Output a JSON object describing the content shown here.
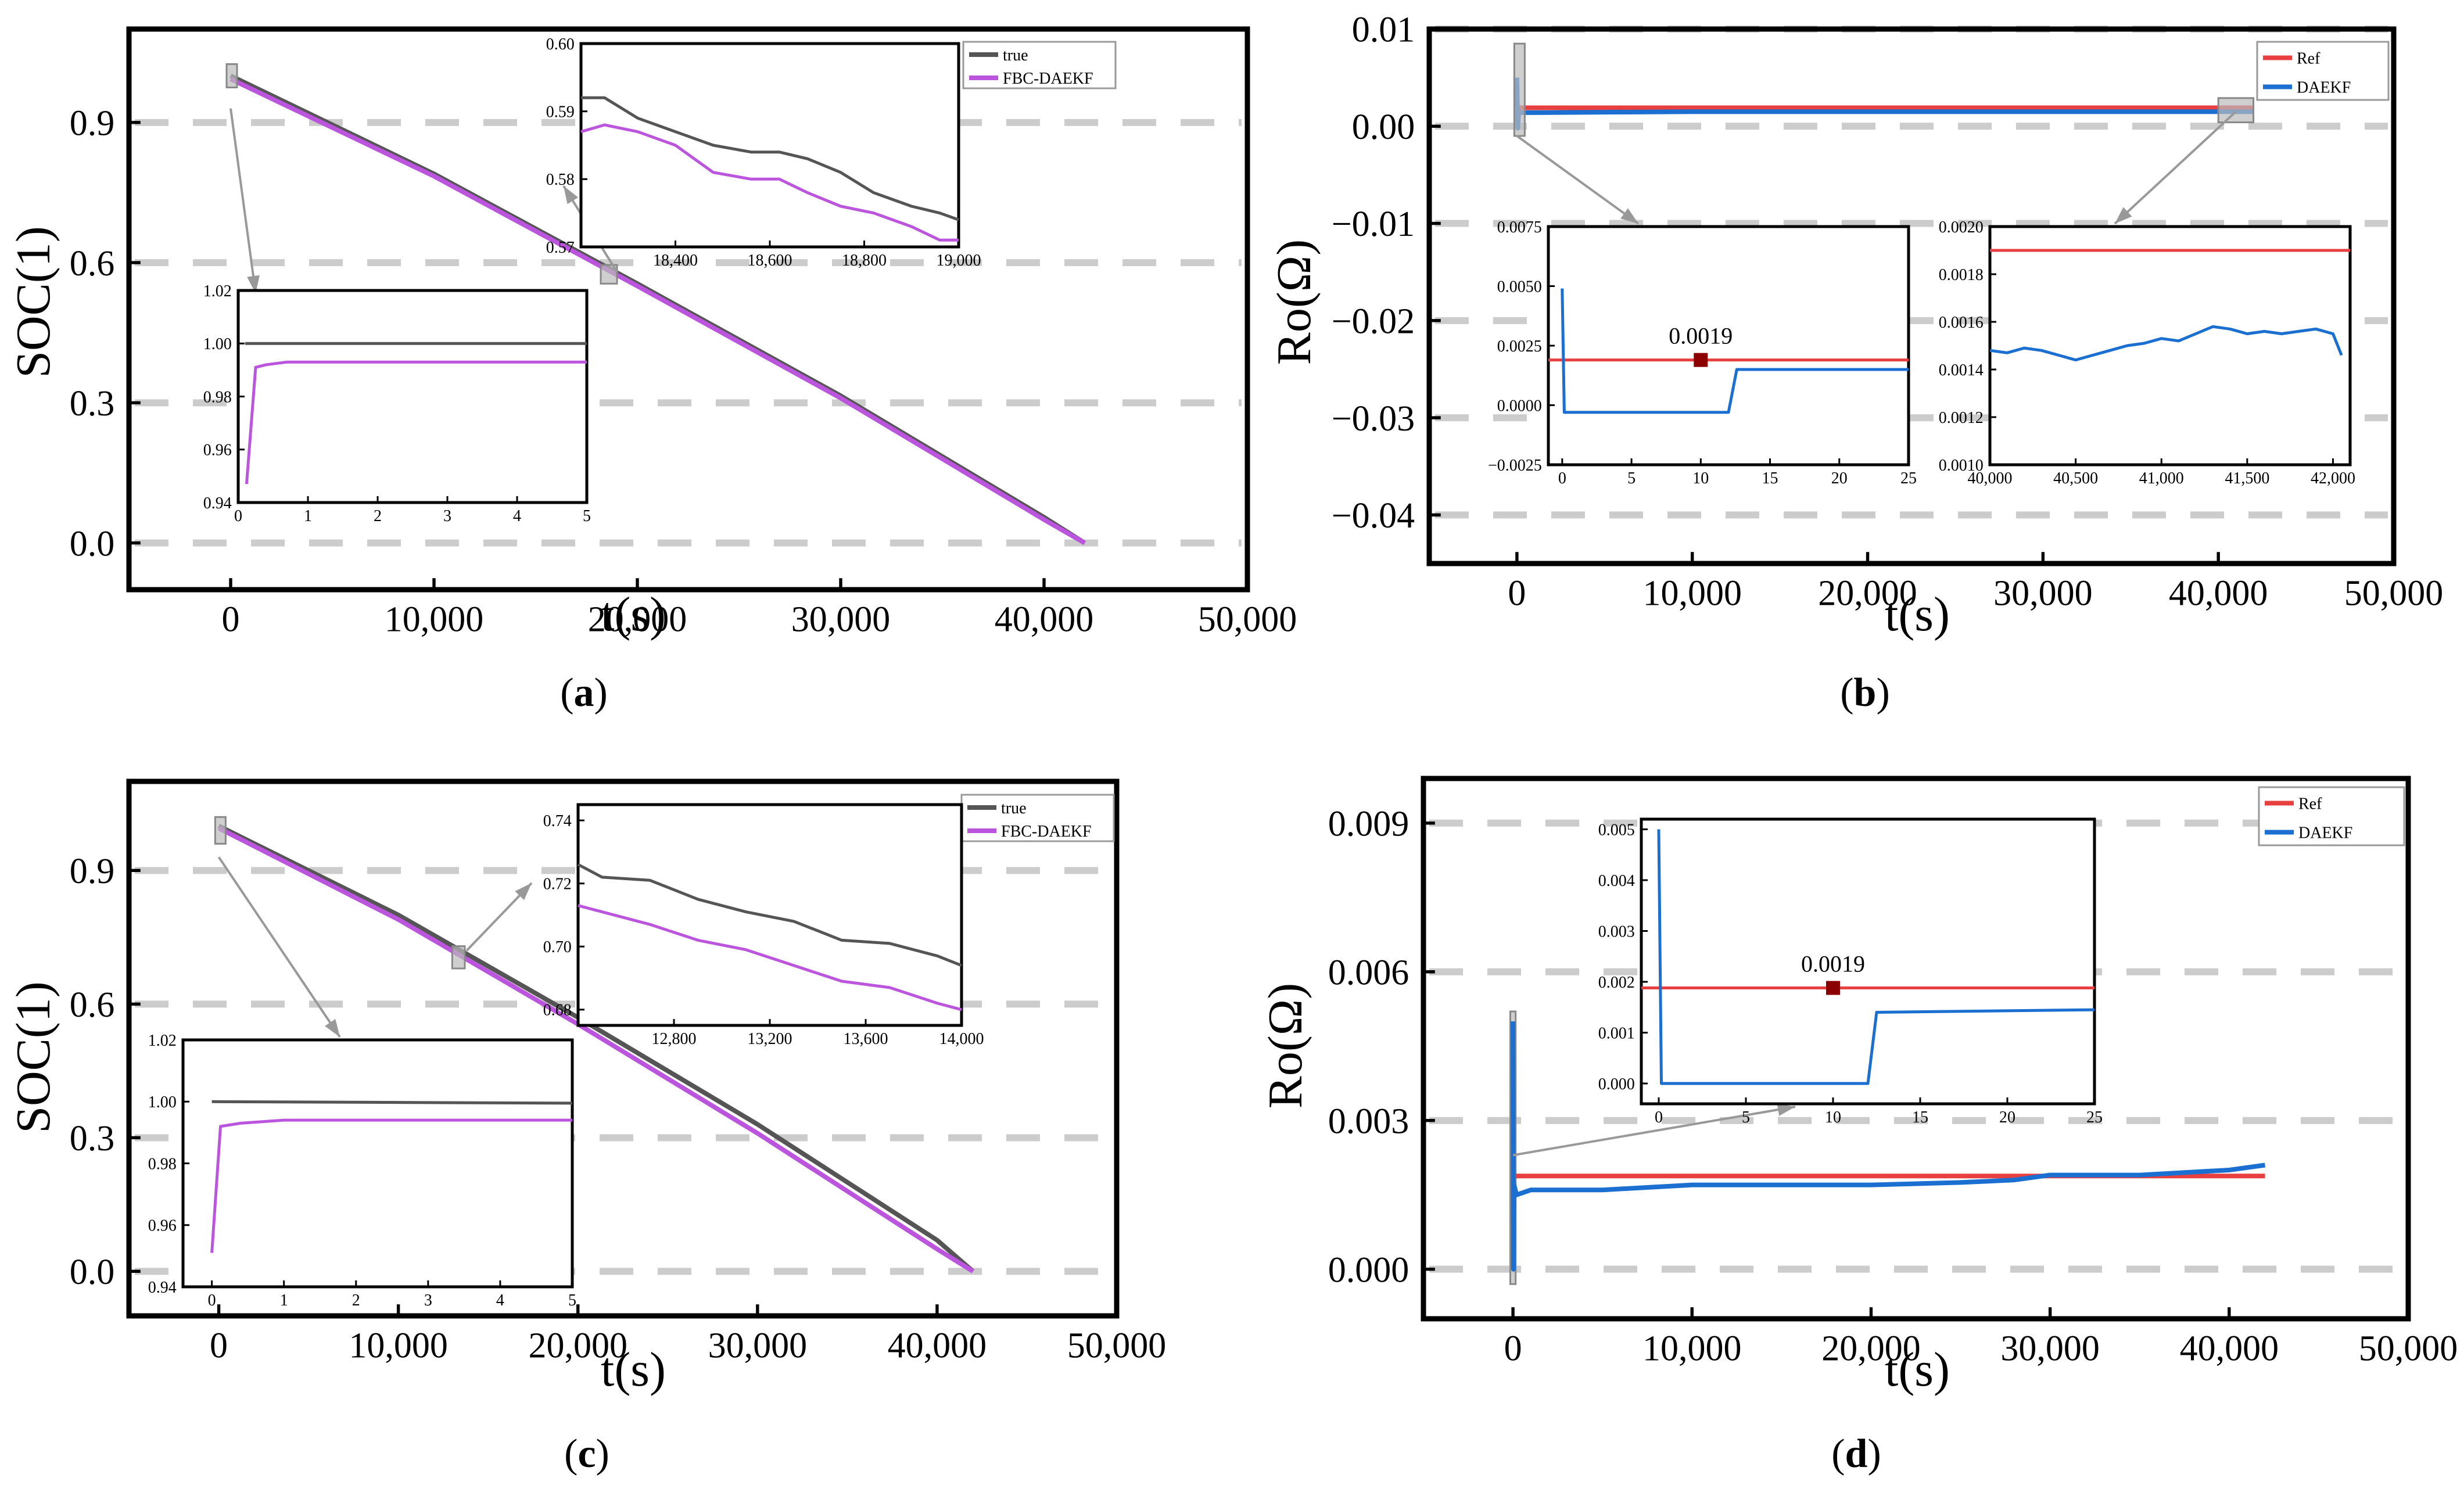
{
  "panels": [
    {
      "id": "a",
      "label": "a",
      "xlabel": "t(s)",
      "ylabel": "SOC(1)",
      "type": "line",
      "xlim": [
        -5000,
        50000
      ],
      "ylim": [
        -0.1,
        1.1
      ],
      "xticks": [
        0,
        10000,
        20000,
        30000,
        40000,
        50000
      ],
      "xticklabels": [
        "0",
        "10,000",
        "20,000",
        "30,000",
        "40,000",
        "50,000"
      ],
      "yticks": [
        0.0,
        0.3,
        0.6,
        0.9
      ],
      "yticklabels": [
        "0.0",
        "0.3",
        "0.6",
        "0.9"
      ],
      "gridlines": "dashed horizontal at y ticks",
      "legend": [
        "true",
        "FBC-DAEKF"
      ],
      "series": [
        {
          "name": "true",
          "color": "#555555",
          "x": [
            0,
            10000,
            20000,
            30000,
            40000,
            42000
          ],
          "y": [
            1.0,
            0.79,
            0.555,
            0.315,
            0.055,
            0.0
          ]
        },
        {
          "name": "FBC-DAEKF",
          "color": "#bb55dd",
          "x": [
            0,
            10000,
            20000,
            30000,
            40000,
            42000
          ],
          "y": [
            0.993,
            0.785,
            0.55,
            0.31,
            0.05,
            0.0
          ]
        }
      ],
      "insets": [
        {
          "xlim": [
            0,
            5
          ],
          "ylim": [
            0.94,
            1.02
          ],
          "xticks": [
            0,
            1,
            2,
            3,
            4,
            5
          ],
          "xticklabels": [
            "0",
            "1",
            "2",
            "3",
            "4",
            "5"
          ],
          "yticks": [
            0.94,
            0.96,
            0.98,
            1.0,
            1.02
          ],
          "yticklabels": [
            "0.94",
            "0.96",
            "0.98",
            "1.00",
            "1.02"
          ],
          "series": [
            {
              "name": "true",
              "x": [
                0.1,
                5
              ],
              "y": [
                1.0,
                1.0
              ]
            },
            {
              "name": "FBC-DAEKF",
              "x": [
                0.12,
                0.25,
                0.4,
                0.7,
                1.2,
                5
              ],
              "y": [
                0.947,
                0.991,
                0.992,
                0.993,
                0.993,
                0.993
              ]
            }
          ]
        },
        {
          "xlim": [
            18200,
            19000
          ],
          "ylim": [
            0.57,
            0.6
          ],
          "xticks": [
            18400,
            18600,
            18800,
            19000
          ],
          "xticklabels": [
            "18,400",
            "18,600",
            "18,800",
            "19,000"
          ],
          "yticks": [
            0.57,
            0.58,
            0.59,
            0.6
          ],
          "yticklabels": [
            "0.57",
            "0.58",
            "0.59",
            "0.60"
          ],
          "series": [
            {
              "name": "true",
              "x": [
                18200,
                18250,
                18320,
                18400,
                18480,
                18560,
                18620,
                18680,
                18750,
                18820,
                18900,
                18960,
                19000
              ],
              "y": [
                0.592,
                0.592,
                0.589,
                0.587,
                0.585,
                0.584,
                0.584,
                0.583,
                0.581,
                0.578,
                0.576,
                0.575,
                0.574
              ]
            },
            {
              "name": "FBC-DAEKF",
              "x": [
                18200,
                18250,
                18320,
                18400,
                18480,
                18560,
                18620,
                18680,
                18750,
                18820,
                18900,
                18960,
                19000
              ],
              "y": [
                0.587,
                0.588,
                0.587,
                0.585,
                0.581,
                0.58,
                0.58,
                0.578,
                0.576,
                0.575,
                0.573,
                0.571,
                0.571
              ]
            }
          ]
        }
      ]
    },
    {
      "id": "b",
      "label": "b",
      "xlabel": "t(s)",
      "ylabel": "Ro(Ω)",
      "type": "line",
      "xlim": [
        -5000,
        50000
      ],
      "ylim": [
        -0.045,
        0.01
      ],
      "xticks": [
        0,
        10000,
        20000,
        30000,
        40000,
        50000
      ],
      "xticklabels": [
        "0",
        "10,000",
        "20,000",
        "30,000",
        "40,000",
        "50,000"
      ],
      "yticks": [
        0.01,
        0.0,
        -0.01,
        -0.02,
        -0.03,
        -0.04
      ],
      "yticklabels": [
        "0.01",
        "0.00",
        "−0.01",
        "−0.02",
        "−0.03",
        "−0.04"
      ],
      "gridlines": "dashed horizontal at y ticks",
      "legend": [
        "Ref",
        "DAEKF"
      ],
      "series": [
        {
          "name": "Ref",
          "color": "#e84040",
          "x": [
            0,
            42000
          ],
          "y": [
            0.0019,
            0.0019
          ]
        },
        {
          "name": "DAEKF",
          "color": "#1a6fd0",
          "x": [
            0,
            50,
            100,
            200,
            1000,
            10000,
            20000,
            30000,
            42000
          ],
          "y": [
            0.005,
            -0.0002,
            0.0015,
            0.0014,
            0.0014,
            0.0015,
            0.0015,
            0.0015,
            0.0015
          ]
        }
      ],
      "insets": [
        {
          "xlim": [
            -1,
            25
          ],
          "ylim": [
            -0.0025,
            0.0075
          ],
          "xticks": [
            0,
            5,
            10,
            15,
            20,
            25
          ],
          "xticklabels": [
            "0",
            "5",
            "10",
            "15",
            "20",
            "25"
          ],
          "yticks": [
            -0.0025,
            0.0,
            0.0025,
            0.005,
            0.0075
          ],
          "yticklabels": [
            "−0.0025",
            "0.0000",
            "0.0025",
            "0.0050",
            "0.0075"
          ],
          "annotation": {
            "x": 10,
            "y": 0.0019,
            "text": "0.0019"
          },
          "series": [
            {
              "name": "Ref",
              "x": [
                -1,
                25
              ],
              "y": [
                0.0019,
                0.0019
              ]
            },
            {
              "name": "DAEKF",
              "x": [
                0,
                0.15,
                12,
                12.6,
                25
              ],
              "y": [
                0.0049,
                -0.0003,
                -0.0003,
                0.0015,
                0.0015
              ]
            }
          ]
        },
        {
          "xlim": [
            40000,
            42100
          ],
          "ylim": [
            0.001,
            0.002
          ],
          "xticks": [
            40000,
            40500,
            41000,
            41500,
            42000
          ],
          "xticklabels": [
            "40,000",
            "40,500",
            "41,000",
            "41,500",
            "42,000"
          ],
          "yticks": [
            0.001,
            0.0012,
            0.0014,
            0.0016,
            0.0018,
            0.002
          ],
          "yticklabels": [
            "0.0010",
            "0.0012",
            "0.0014",
            "0.0016",
            "0.0018",
            "0.0020"
          ],
          "series": [
            {
              "name": "Ref",
              "x": [
                40000,
                42100
              ],
              "y": [
                0.0019,
                0.0019
              ]
            },
            {
              "name": "DAEKF",
              "x": [
                40000,
                40100,
                40200,
                40300,
                40400,
                40500,
                40600,
                40700,
                40800,
                40900,
                41000,
                41100,
                41200,
                41300,
                41400,
                41500,
                41600,
                41700,
                41800,
                41900,
                42000,
                42050
              ],
              "y": [
                0.00148,
                0.00147,
                0.00149,
                0.00148,
                0.00146,
                0.00144,
                0.00146,
                0.00148,
                0.0015,
                0.00151,
                0.00153,
                0.00152,
                0.00155,
                0.00158,
                0.00157,
                0.00155,
                0.00156,
                0.00155,
                0.00156,
                0.00157,
                0.00155,
                0.00146
              ]
            }
          ]
        }
      ]
    },
    {
      "id": "c",
      "label": "c",
      "xlabel": "t(s)",
      "ylabel": "SOC(1)",
      "type": "line",
      "xlim": [
        -5000,
        50000
      ],
      "ylim": [
        -0.1,
        1.1
      ],
      "xticks": [
        0,
        10000,
        20000,
        30000,
        40000,
        50000
      ],
      "xticklabels": [
        "0",
        "10,000",
        "20,000",
        "30,000",
        "40,000",
        "50,000"
      ],
      "yticks": [
        0.0,
        0.3,
        0.6,
        0.9
      ],
      "yticklabels": [
        "0.0",
        "0.3",
        "0.6",
        "0.9"
      ],
      "gridlines": "dashed horizontal at y ticks",
      "legend": [
        "true",
        "FBC-DAEKF"
      ],
      "series": [
        {
          "name": "true",
          "color": "#555555",
          "x": [
            0,
            10000,
            20000,
            30000,
            40000,
            42000
          ],
          "y": [
            1.0,
            0.8,
            0.57,
            0.33,
            0.07,
            0.0
          ]
        },
        {
          "name": "FBC-DAEKF",
          "color": "#bb55dd",
          "x": [
            0,
            10000,
            20000,
            30000,
            40000,
            42000
          ],
          "y": [
            0.995,
            0.79,
            0.555,
            0.31,
            0.05,
            0.0
          ]
        }
      ],
      "insets": [
        {
          "xlim": [
            -0.4,
            5
          ],
          "ylim": [
            0.94,
            1.02
          ],
          "xticks": [
            0,
            1,
            2,
            3,
            4,
            5
          ],
          "xticklabels": [
            "0",
            "1",
            "2",
            "3",
            "4",
            "5"
          ],
          "yticks": [
            0.94,
            0.96,
            0.98,
            1.0,
            1.02
          ],
          "yticklabels": [
            "0.94",
            "0.96",
            "0.98",
            "1.00",
            "1.02"
          ],
          "series": [
            {
              "name": "true",
              "x": [
                0,
                5
              ],
              "y": [
                1.0,
                0.9995
              ]
            },
            {
              "name": "FBC-DAEKF",
              "x": [
                0,
                0.12,
                0.4,
                1,
                5
              ],
              "y": [
                0.951,
                0.992,
                0.993,
                0.994,
                0.994
              ]
            }
          ]
        },
        {
          "xlim": [
            12400,
            14000
          ],
          "ylim": [
            0.675,
            0.745
          ],
          "xticks": [
            12800,
            13200,
            13600,
            14000
          ],
          "xticklabels": [
            "12,800",
            "13,200",
            "13,600",
            "14,000"
          ],
          "yticks": [
            0.68,
            0.7,
            0.72,
            0.74
          ],
          "yticklabels": [
            "0.68",
            "0.70",
            "0.72",
            "0.74"
          ],
          "series": [
            {
              "name": "true",
              "x": [
                12400,
                12500,
                12700,
                12900,
                13100,
                13300,
                13500,
                13700,
                13900,
                14000
              ],
              "y": [
                0.726,
                0.722,
                0.721,
                0.715,
                0.711,
                0.708,
                0.702,
                0.701,
                0.697,
                0.694
              ]
            },
            {
              "name": "FBC-DAEKF",
              "x": [
                12400,
                12500,
                12700,
                12900,
                13100,
                13300,
                13500,
                13700,
                13900,
                14000
              ],
              "y": [
                0.713,
                0.711,
                0.707,
                0.702,
                0.699,
                0.694,
                0.689,
                0.687,
                0.682,
                0.68
              ]
            }
          ]
        }
      ]
    },
    {
      "id": "d",
      "label": "d",
      "xlabel": "t(s)",
      "ylabel": "Ro(Ω)",
      "type": "line",
      "xlim": [
        -5000,
        50000
      ],
      "ylim": [
        -0.001,
        0.0099
      ],
      "xticks": [
        0,
        10000,
        20000,
        30000,
        40000,
        50000
      ],
      "xticklabels": [
        "0",
        "10,000",
        "20,000",
        "30,000",
        "40,000",
        "50,000"
      ],
      "yticks": [
        0.0,
        0.003,
        0.006,
        0.009
      ],
      "yticklabels": [
        "0.000",
        "0.003",
        "0.006",
        "0.009"
      ],
      "gridlines": "dashed horizontal at y ticks",
      "legend": [
        "Ref",
        "DAEKF"
      ],
      "series": [
        {
          "name": "Ref",
          "color": "#e84040",
          "x": [
            0,
            42000
          ],
          "y": [
            0.00188,
            0.00188
          ]
        },
        {
          "name": "DAEKF",
          "color": "#1a6fd0",
          "x": [
            0,
            30,
            60,
            200,
            1000,
            5000,
            10000,
            15000,
            20000,
            25000,
            28000,
            30000,
            35000,
            40000,
            42000
          ],
          "y": [
            0.005,
            0.0,
            0.0017,
            0.0015,
            0.0016,
            0.0016,
            0.0017,
            0.0017,
            0.0017,
            0.00175,
            0.0018,
            0.0019,
            0.0019,
            0.002,
            0.0021
          ]
        }
      ],
      "insets": [
        {
          "xlim": [
            -1,
            25
          ],
          "ylim": [
            -0.0004,
            0.0052
          ],
          "xticks": [
            0,
            5,
            10,
            15,
            20,
            25
          ],
          "xticklabels": [
            "0",
            "5",
            "10",
            "15",
            "20",
            "25"
          ],
          "yticks": [
            0.0,
            0.001,
            0.002,
            0.003,
            0.004,
            0.005
          ],
          "yticklabels": [
            "0.000",
            "0.001",
            "0.002",
            "0.003",
            "0.004",
            "0.005"
          ],
          "annotation": {
            "x": 10,
            "y": 0.00188,
            "text": "0.0019"
          },
          "series": [
            {
              "name": "Ref",
              "x": [
                -1,
                25
              ],
              "y": [
                0.00188,
                0.00188
              ]
            },
            {
              "name": "DAEKF",
              "x": [
                0,
                0.15,
                12,
                12.5,
                25
              ],
              "y": [
                0.005,
                0.0,
                0.0,
                0.0014,
                0.00145
              ]
            }
          ]
        }
      ]
    }
  ]
}
